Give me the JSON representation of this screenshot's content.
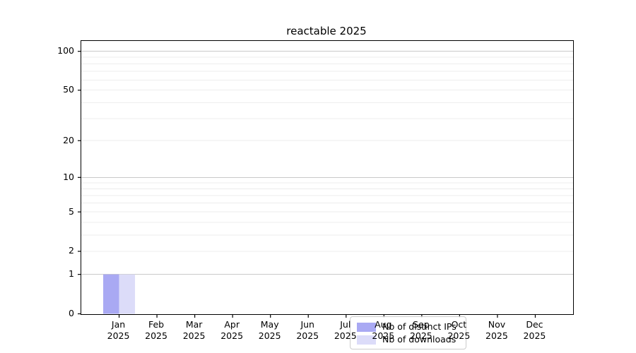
{
  "chart_data": {
    "type": "bar",
    "title": "reactable 2025",
    "x_months": [
      "Jan",
      "Feb",
      "Mar",
      "Apr",
      "May",
      "Jun",
      "Jul",
      "Aug",
      "Sep",
      "Oct",
      "Nov",
      "Dec"
    ],
    "x_year": "2025",
    "series": [
      {
        "name": "Nb of distinct IPs",
        "color": "#a9a9f3",
        "values": [
          1,
          0,
          0,
          0,
          0,
          0,
          0,
          0,
          0,
          0,
          0,
          0
        ]
      },
      {
        "name": "Nb of downloads",
        "color": "#dcdcf9",
        "values": [
          1,
          0,
          0,
          0,
          0,
          0,
          0,
          0,
          0,
          0,
          0,
          0
        ]
      }
    ],
    "yscale": "log1p",
    "ylabel": "",
    "xlabel": "",
    "yticks": [
      0,
      1,
      2,
      5,
      10,
      20,
      50,
      100
    ],
    "y_minor_gridlines": [
      2,
      3,
      4,
      5,
      6,
      7,
      8,
      9,
      20,
      30,
      40,
      50,
      60,
      70,
      80,
      90
    ],
    "y_major_gridlines": [
      1,
      10,
      100
    ],
    "ylim": [
      0,
      120
    ],
    "grid": true,
    "legend_position": "bottom-center-inside"
  },
  "colors": {
    "major_grid": "#c9c9c9",
    "minor_grid": "#ededed",
    "spine": "#000000",
    "tick": "#000000",
    "background": "#ffffff"
  }
}
